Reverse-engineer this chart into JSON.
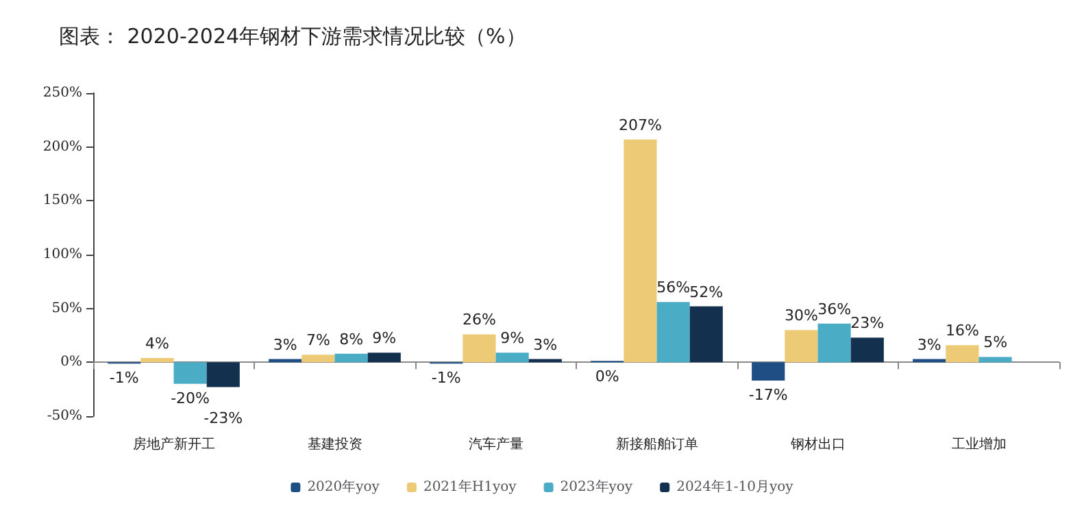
{
  "chart_data": {
    "type": "bar",
    "title": "图表： 2020-2024年钢材下游需求情况比较（%）",
    "categories": [
      "房地产新开工",
      "基建投资",
      "汽车产量",
      "新接船舶订单",
      "钢材出口",
      "工业增加"
    ],
    "series": [
      {
        "name": "2020年yoy",
        "color": "#1f4e85",
        "values": [
          -1,
          3,
          -1,
          0,
          -17,
          3
        ],
        "value_labels": [
          "-1%",
          "3%",
          "-1%",
          "0%",
          "-17%",
          "3%"
        ]
      },
      {
        "name": "2021年H1yoy",
        "color": "#edcb76",
        "values": [
          4,
          7,
          26,
          207,
          30,
          16
        ],
        "value_labels": [
          "4%",
          "7%",
          "26%",
          "207%",
          "30%",
          "16%"
        ]
      },
      {
        "name": "2023年yoy",
        "color": "#4bacc6",
        "values": [
          -20,
          8,
          9,
          56,
          36,
          5
        ],
        "value_labels": [
          "-20%",
          "8%",
          "9%",
          "56%",
          "36%",
          "5%"
        ]
      },
      {
        "name": "2024年1-10月yoy",
        "color": "#14304f",
        "values": [
          -23,
          9,
          3,
          52,
          23,
          null
        ],
        "value_labels": [
          "-23%",
          "9%",
          "3%",
          "52%",
          "23%",
          null
        ]
      }
    ],
    "ylim": [
      -50,
      250
    ],
    "yticks": [
      {
        "value": -50,
        "label": "-50%"
      },
      {
        "value": 0,
        "label": "0%"
      },
      {
        "value": 50,
        "label": "50%"
      },
      {
        "value": 100,
        "label": "100%"
      },
      {
        "value": 150,
        "label": "150%"
      },
      {
        "value": 200,
        "label": "200%"
      },
      {
        "value": 250,
        "label": "250%"
      }
    ],
    "legend": "bottom"
  }
}
